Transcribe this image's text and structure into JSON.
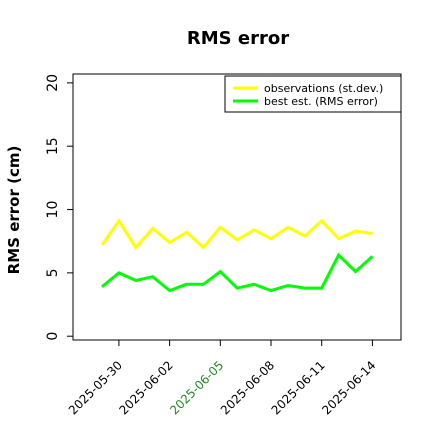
{
  "chart_data": {
    "type": "line",
    "title": "RMS error",
    "xlabel": "",
    "ylabel": "RMS error (cm)",
    "ylim": [
      -0.3,
      20.7
    ],
    "yticks": [
      0,
      5,
      10,
      15,
      20
    ],
    "x": [
      "2025-05-29",
      "2025-05-30",
      "2025-05-31",
      "2025-06-01",
      "2025-06-02",
      "2025-06-03",
      "2025-06-04",
      "2025-06-05",
      "2025-06-06",
      "2025-06-07",
      "2025-06-08",
      "2025-06-09",
      "2025-06-10",
      "2025-06-11",
      "2025-06-12",
      "2025-06-13",
      "2025-06-14"
    ],
    "xticks": [
      {
        "label": "2025-05-30",
        "color": "#000000"
      },
      {
        "label": "2025-06-02",
        "color": "#000000"
      },
      {
        "label": "2025-06-05",
        "color": "#228b22"
      },
      {
        "label": "2025-06-08",
        "color": "#000000"
      },
      {
        "label": "2025-06-11",
        "color": "#000000"
      },
      {
        "label": "2025-06-14",
        "color": "#000000"
      }
    ],
    "series": [
      {
        "name": "observations (st.dev.)",
        "color": "#ffff00",
        "values": [
          7.2,
          9.1,
          7.0,
          8.5,
          7.4,
          8.2,
          7.0,
          8.6,
          7.6,
          8.4,
          7.7,
          8.6,
          7.9,
          9.1,
          7.7,
          8.3,
          8.1
        ]
      },
      {
        "name": "best est. (RMS error)",
        "color": "#00ff00",
        "values": [
          3.9,
          5.0,
          4.4,
          4.7,
          3.6,
          4.1,
          4.1,
          5.1,
          3.8,
          4.1,
          3.6,
          4.0,
          3.8,
          3.8,
          6.4,
          5.1,
          6.3
        ]
      }
    ],
    "grid": false,
    "legend_position": "top-right"
  }
}
